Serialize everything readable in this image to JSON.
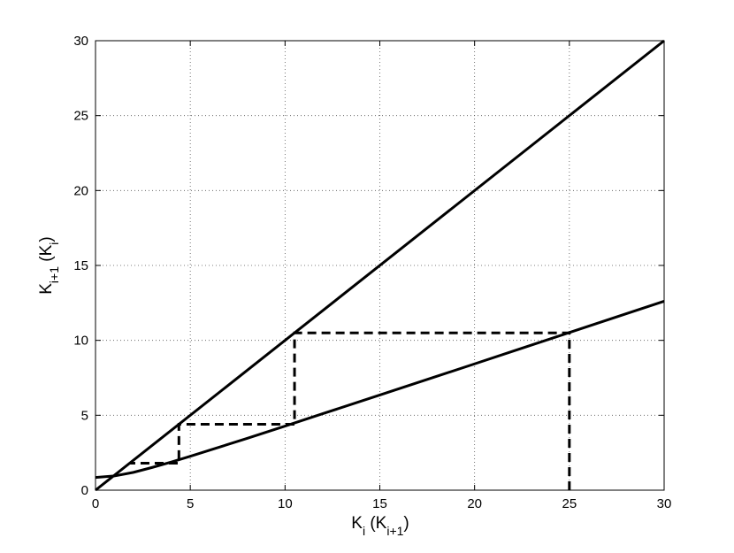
{
  "chart_data": {
    "type": "line",
    "xlabel": [
      {
        "text": "K"
      },
      {
        "text": "i",
        "sub": true
      },
      {
        "text": " (K"
      },
      {
        "text": "i+1",
        "sub": true
      },
      {
        "text": ")"
      }
    ],
    "ylabel": [
      {
        "text": "K"
      },
      {
        "text": "i+1",
        "sub": true
      },
      {
        "text": " (K"
      },
      {
        "text": "i",
        "sub": true
      },
      {
        "text": ")"
      }
    ],
    "xlim": [
      0,
      30
    ],
    "ylim": [
      0,
      30
    ],
    "xticks": [
      0,
      5,
      10,
      15,
      20,
      25,
      30
    ],
    "yticks": [
      0,
      5,
      10,
      15,
      20,
      25,
      30
    ],
    "grid": true,
    "series": [
      {
        "color": "#000000",
        "dashed": false,
        "x": [
          0,
          30
        ],
        "values": [
          0,
          30
        ]
      },
      {
        "color": "#000000",
        "dashed": false,
        "x": [
          0,
          1,
          2,
          3,
          4,
          5,
          6,
          8,
          10,
          12,
          15,
          18,
          20,
          22,
          25,
          28,
          30
        ],
        "values": [
          0.85,
          0.95,
          1.19,
          1.52,
          1.88,
          2.26,
          2.66,
          3.46,
          4.28,
          5.11,
          6.35,
          7.6,
          8.43,
          9.27,
          10.52,
          11.78,
          12.61
        ]
      },
      {
        "color": "#000000",
        "dashed": true,
        "x": [
          25,
          25,
          10.5,
          10.5,
          4.4,
          4.4,
          1.8
        ],
        "values": [
          0,
          10.5,
          10.5,
          4.4,
          4.4,
          1.8,
          1.8
        ]
      }
    ]
  }
}
